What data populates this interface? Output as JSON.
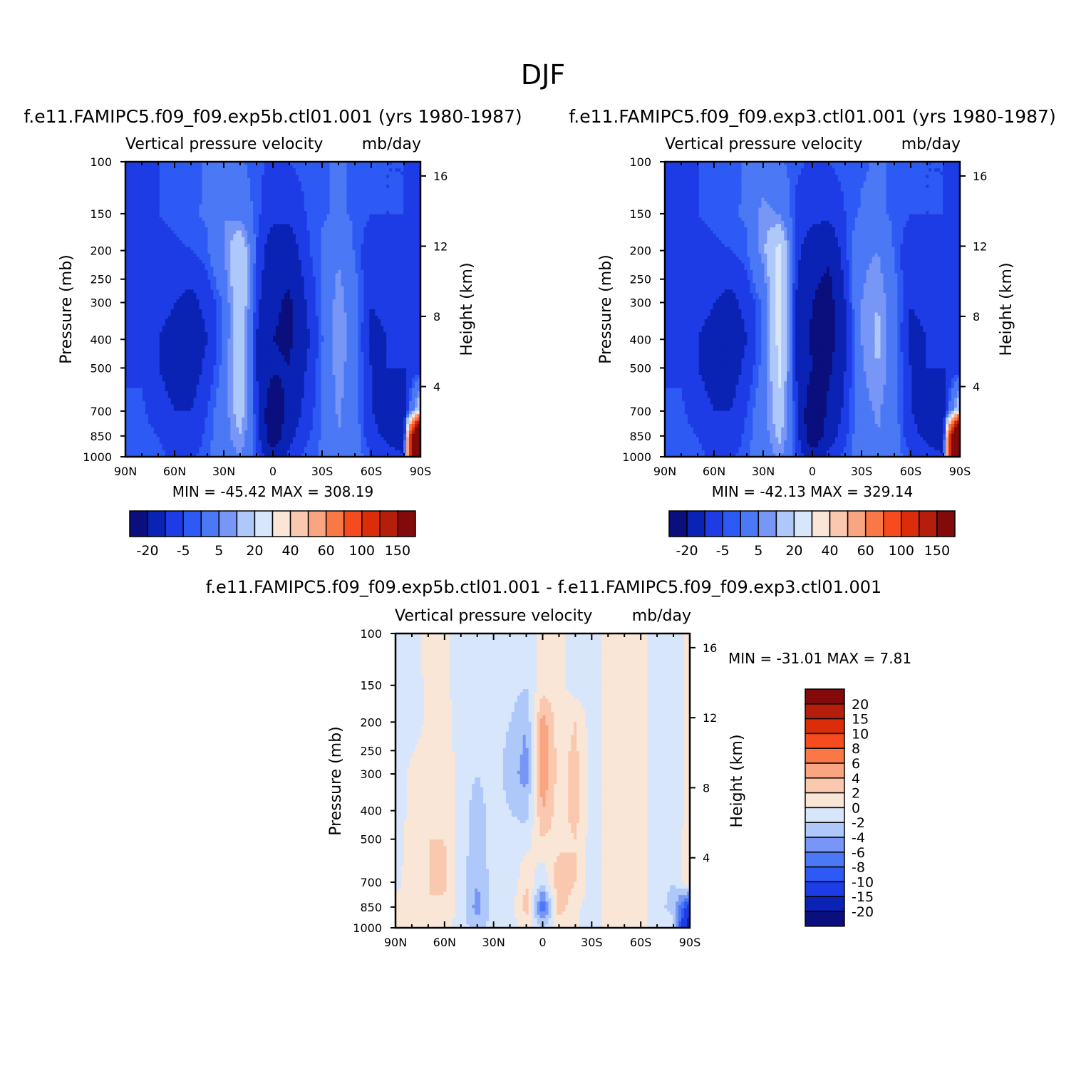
{
  "figure_title": "DJF",
  "panels": {
    "top_left": {
      "case_title": "f.e11.FAMIPC5.f09_f09.exp5b.ctl01.001 (yrs 1980-1987)",
      "var_label": "Vertical pressure velocity",
      "units": "mb/day",
      "min_max": "MIN = -45.42   MAX = 308.19"
    },
    "top_right": {
      "case_title": "f.e11.FAMIPC5.f09_f09.exp3.ctl01.001 (yrs 1980-1987)",
      "var_label": "Vertical pressure velocity",
      "units": "mb/day",
      "min_max": "MIN = -42.13   MAX = 329.14"
    },
    "bottom": {
      "case_title": "f.e11.FAMIPC5.f09_f09.exp5b.ctl01.001 - f.e11.FAMIPC5.f09_f09.exp3.ctl01.001",
      "var_label": "Vertical pressure velocity",
      "units": "mb/day",
      "min_max": "MIN = -31.01   MAX =    7.81"
    }
  },
  "axes": {
    "ylabel_left": "Pressure (mb)",
    "ylabel_right": "Height (km)",
    "pressure_ticks": [
      "100",
      "150",
      "200",
      "250",
      "300",
      "400",
      "500",
      "700",
      "850",
      "1000"
    ],
    "pressure_values": [
      100,
      150,
      200,
      250,
      300,
      400,
      500,
      700,
      850,
      1000
    ],
    "height_ticks": [
      "16",
      "12",
      "8",
      "4"
    ],
    "height_values": [
      16,
      12,
      8,
      4
    ],
    "lat_ticks": [
      "90N",
      "60N",
      "30N",
      "0",
      "30S",
      "60S",
      "90S"
    ],
    "lat_values": [
      90,
      60,
      30,
      0,
      -30,
      -60,
      -90
    ]
  },
  "colorbars": {
    "full_field": {
      "labels": [
        "-20",
        "-5",
        "5",
        "20",
        "40",
        "60",
        "100",
        "150"
      ],
      "colors": [
        "#0a0f7d",
        "#0a23b4",
        "#1e3ce6",
        "#2d5af5",
        "#4b78f5",
        "#7896f5",
        "#afc8fa",
        "#d7e6fa",
        "#fae6d7",
        "#fac8af",
        "#faa582",
        "#fa7846",
        "#f54b1e",
        "#dc2d0a",
        "#b41e0a",
        "#820a0a"
      ]
    },
    "difference": {
      "labels": [
        "20",
        "15",
        "10",
        "8",
        "6",
        "4",
        "2",
        "0",
        "-2",
        "-4",
        "-6",
        "-8",
        "-10",
        "-15",
        "-20"
      ],
      "colors_top_to_bottom": [
        "#820a0a",
        "#b41e0a",
        "#dc2d0a",
        "#f54b1e",
        "#fa7846",
        "#faa582",
        "#fac8af",
        "#fae6d7",
        "#d7e6fa",
        "#afc8fa",
        "#7896f5",
        "#4b78f5",
        "#2d5af5",
        "#1e3ce6",
        "#0a23b4",
        "#0a0f7d"
      ]
    }
  },
  "chart_data": [
    {
      "type": "heatmap",
      "title": "f.e11.FAMIPC5.f09_f09.exp5b.ctl01.001 (yrs 1980-1987)",
      "subtitle": "Vertical pressure velocity",
      "units": "mb/day",
      "xlabel": "",
      "ylabel": "Pressure (mb)",
      "y2label": "Height (km)",
      "xlim": [
        90,
        -90
      ],
      "ylim": [
        1000,
        100
      ],
      "yscale": "log",
      "min": -45.42,
      "max": 308.19,
      "x": [
        90,
        80,
        70,
        60,
        50,
        40,
        30,
        20,
        10,
        0,
        -10,
        -20,
        -30,
        -40,
        -50,
        -60,
        -70,
        -80,
        -90
      ],
      "y": [
        100,
        150,
        200,
        300,
        400,
        500,
        700,
        850,
        1000
      ],
      "z": [
        [
          -8,
          -5,
          -5,
          -4,
          -4,
          -2,
          -2,
          -2,
          -4,
          -6,
          -5,
          -4,
          -3,
          -2,
          -3,
          -4,
          -5,
          -5,
          -6
        ],
        [
          -8,
          -6,
          -5,
          -4,
          -3,
          -2,
          5,
          2,
          -4,
          -8,
          -8,
          -5,
          -3,
          -2,
          -3,
          -5,
          -5,
          -5,
          -6
        ],
        [
          -10,
          -8,
          -7,
          -6,
          -5,
          -3,
          5,
          20,
          -5,
          -15,
          -15,
          -6,
          -2,
          4,
          -3,
          -8,
          -6,
          -6,
          -7
        ],
        [
          -10,
          -9,
          -8,
          -10,
          -12,
          -8,
          -2,
          20,
          -8,
          -18,
          -22,
          -10,
          -2,
          8,
          0,
          -10,
          -8,
          -6,
          -8
        ],
        [
          -9,
          -8,
          -10,
          -12,
          -15,
          -10,
          -2,
          20,
          -10,
          -20,
          -22,
          -12,
          -3,
          10,
          0,
          -12,
          -10,
          -8,
          -8
        ],
        [
          -6,
          -6,
          -10,
          -12,
          -14,
          -8,
          -1,
          20,
          -10,
          -18,
          -20,
          -10,
          -2,
          8,
          0,
          -10,
          -10,
          -10,
          -8
        ],
        [
          -4,
          -4,
          -8,
          -10,
          -10,
          -5,
          1,
          15,
          -8,
          -30,
          -15,
          -8,
          -2,
          6,
          0,
          -10,
          -12,
          -14,
          20
        ],
        [
          -3,
          -3,
          -5,
          -8,
          -8,
          -4,
          1,
          10,
          -6,
          -30,
          -12,
          -6,
          -2,
          5,
          0,
          -8,
          -12,
          -20,
          300
        ],
        [
          -3,
          -3,
          -4,
          -6,
          -6,
          -3,
          0,
          5,
          -4,
          -15,
          -8,
          -4,
          -2,
          3,
          0,
          -5,
          -6,
          -8,
          300
        ]
      ]
    },
    {
      "type": "heatmap",
      "title": "f.e11.FAMIPC5.f09_f09.exp3.ctl01.001 (yrs 1980-1987)",
      "subtitle": "Vertical pressure velocity",
      "units": "mb/day",
      "xlabel": "",
      "ylabel": "Pressure (mb)",
      "y2label": "Height (km)",
      "xlim": [
        90,
        -90
      ],
      "ylim": [
        1000,
        100
      ],
      "yscale": "log",
      "min": -42.13,
      "max": 329.14,
      "x": [
        90,
        80,
        70,
        60,
        50,
        40,
        30,
        20,
        10,
        0,
        -10,
        -20,
        -30,
        -40,
        -50,
        -60,
        -70,
        -80,
        -90
      ],
      "y": [
        100,
        150,
        200,
        300,
        400,
        500,
        700,
        850,
        1000
      ],
      "z": [
        [
          -8,
          -5,
          -5,
          -4,
          -4,
          -2,
          -2,
          -2,
          -4,
          -6,
          -5,
          -4,
          -3,
          -2,
          -3,
          -4,
          -5,
          -5,
          -6
        ],
        [
          -8,
          -6,
          -5,
          -4,
          -3,
          -2,
          8,
          4,
          -6,
          -8,
          -8,
          -5,
          -2,
          -2,
          -3,
          -5,
          -5,
          -5,
          -6
        ],
        [
          -10,
          -8,
          -7,
          -6,
          -5,
          -3,
          8,
          25,
          -8,
          -15,
          -18,
          -6,
          3,
          5,
          -3,
          -8,
          -6,
          -6,
          -7
        ],
        [
          -10,
          -9,
          -8,
          -10,
          -12,
          -8,
          -2,
          25,
          -10,
          -20,
          -25,
          -10,
          5,
          10,
          0,
          -10,
          -8,
          -6,
          -8
        ],
        [
          -9,
          -8,
          -10,
          -12,
          -15,
          -10,
          -2,
          25,
          -10,
          -22,
          -25,
          -12,
          5,
          12,
          0,
          -12,
          -10,
          -8,
          -8
        ],
        [
          -6,
          -6,
          -10,
          -12,
          -14,
          -8,
          -1,
          22,
          -10,
          -20,
          -22,
          -10,
          4,
          10,
          0,
          -10,
          -10,
          -10,
          -8
        ],
        [
          -4,
          -4,
          -8,
          -10,
          -10,
          -5,
          1,
          18,
          -8,
          -30,
          -18,
          -8,
          2,
          6,
          0,
          -10,
          -12,
          -14,
          20
        ],
        [
          -3,
          -3,
          -5,
          -8,
          -8,
          -4,
          1,
          12,
          -6,
          -30,
          -14,
          -6,
          1,
          5,
          0,
          -8,
          -12,
          -20,
          300
        ],
        [
          -3,
          -3,
          -4,
          -6,
          -6,
          -3,
          0,
          6,
          -4,
          -15,
          -8,
          -4,
          0,
          3,
          0,
          -5,
          -6,
          -8,
          300
        ]
      ]
    },
    {
      "type": "heatmap",
      "title": "f.e11.FAMIPC5.f09_f09.exp5b.ctl01.001 - f.e11.FAMIPC5.f09_f09.exp3.ctl01.001",
      "subtitle": "Vertical pressure velocity",
      "units": "mb/day",
      "xlabel": "",
      "ylabel": "Pressure (mb)",
      "y2label": "Height (km)",
      "xlim": [
        90,
        -90
      ],
      "ylim": [
        1000,
        100
      ],
      "yscale": "log",
      "min": -31.01,
      "max": 7.81,
      "x": [
        90,
        80,
        70,
        60,
        50,
        40,
        30,
        20,
        10,
        0,
        -10,
        -20,
        -30,
        -40,
        -50,
        -60,
        -70,
        -80,
        -90
      ],
      "y": [
        100,
        150,
        200,
        300,
        400,
        500,
        700,
        850,
        1000
      ],
      "z": [
        [
          -1,
          -0.5,
          0.5,
          0.5,
          -1,
          -1,
          -1,
          -1,
          -1,
          0.5,
          0.5,
          -1,
          -1,
          0.5,
          0.5,
          0.5,
          -1,
          -1,
          0.5
        ],
        [
          -1,
          -1,
          0.5,
          0.5,
          -1,
          -1,
          -1,
          -1,
          -2,
          1,
          0.5,
          -1,
          -1,
          0.5,
          0.5,
          0.5,
          -1,
          -1,
          0.5
        ],
        [
          -1,
          -1,
          0.5,
          0.8,
          -1,
          -1,
          -1,
          -2,
          -4,
          5,
          1,
          2,
          -1,
          0.5,
          0.5,
          0.5,
          -1,
          -1,
          0.5
        ],
        [
          -1,
          0.5,
          1,
          1.5,
          -1,
          -2,
          -1,
          -3,
          -5,
          6,
          1,
          3,
          -1,
          0.5,
          0.5,
          0.5,
          -1,
          -1,
          0.5
        ],
        [
          -1,
          0.5,
          1.5,
          2,
          -1,
          -3,
          -1,
          -2,
          -3,
          4,
          1,
          3,
          -1,
          0.5,
          0.5,
          0.5,
          -1,
          -1,
          0.5
        ],
        [
          -1,
          1,
          2,
          2,
          -1,
          -3,
          -1,
          -1,
          -1,
          2,
          1,
          2,
          -1,
          0.5,
          0.5,
          0.5,
          -1,
          -1,
          1
        ],
        [
          -1,
          1.5,
          2,
          2.5,
          -1,
          -4,
          -1,
          -2,
          2,
          -2,
          4,
          2,
          -1,
          0.5,
          0.5,
          0.5,
          -1,
          -2,
          2
        ],
        [
          1,
          1.5,
          2,
          1.5,
          -1,
          -5,
          -1,
          -1,
          3,
          -8,
          3,
          0.5,
          -1,
          0.5,
          0.5,
          0.5,
          -1,
          -3,
          -12
        ],
        [
          0.5,
          1,
          1,
          1,
          -1,
          -3,
          -1,
          -1,
          1,
          -2,
          1,
          0.5,
          -1,
          0.5,
          0.5,
          0.5,
          -1,
          -1,
          -20
        ]
      ]
    }
  ]
}
